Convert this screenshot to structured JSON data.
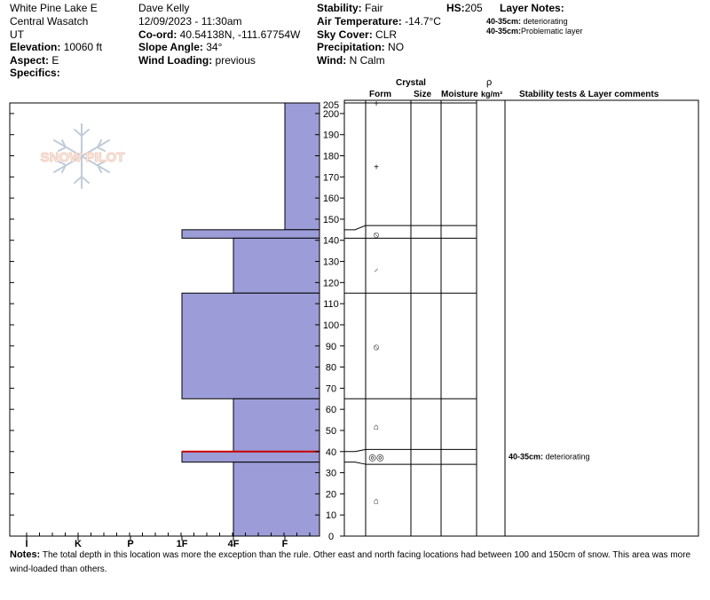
{
  "header": {
    "location": "White Pine Lake E",
    "range": "Central Wasatch",
    "state": "UT",
    "elevation_label": "Elevation:",
    "elevation_value": "10060 ft",
    "aspect_label": "Aspect:",
    "aspect_value": "E",
    "specifics_label": "Specifics:",
    "observer": "Dave Kelly",
    "datetime": "12/09/2023 - 11:30am",
    "coord_label": "Co-ord:",
    "coord_value": "40.54138N, -111.67754W",
    "slope_label": "Slope Angle:",
    "slope_value": "34°",
    "wind_loading_label": "Wind Loading:",
    "wind_loading_value": "previous",
    "stability_label": "Stability:",
    "stability_value": "Fair",
    "air_temp_label": "Air Temperature:",
    "air_temp_value": "-14.7°C",
    "sky_label": "Sky Cover:",
    "sky_value": "CLR",
    "precip_label": "Precipitation:",
    "precip_value": "NO",
    "wind_label": "Wind:",
    "wind_value": "N Calm",
    "hs_label": "HS:",
    "hs_value": "205",
    "layer_notes_label": "Layer Notes:",
    "layer_notes": [
      {
        "range": "40-35cm:",
        "text": "deteriorating"
      },
      {
        "range": "40-35cm:",
        "text": "Problematic layer"
      }
    ]
  },
  "logo_text": "SNOW PILOT",
  "columns": {
    "crystal": "Crystal",
    "form": "Form",
    "size": "Size",
    "moisture": "Moisture",
    "rho": "ρ",
    "density_unit": "kg/m³",
    "comments": "Stability tests & Layer comments"
  },
  "colors": {
    "hardness_fill": "#9c9cd8",
    "weak_layer_line": "#cc0000"
  },
  "chart_data": {
    "type": "bar",
    "title": "",
    "y_axis": {
      "min": 0,
      "max": 205,
      "ticks": [
        0,
        10,
        20,
        30,
        40,
        50,
        60,
        70,
        80,
        90,
        100,
        110,
        120,
        130,
        140,
        150,
        160,
        170,
        180,
        190,
        200,
        205
      ]
    },
    "x_axis": {
      "categories": [
        "I",
        "K",
        "P",
        "1F",
        "4F",
        "F"
      ]
    },
    "layers": [
      {
        "top": 205,
        "bottom": 145,
        "hardness": "F"
      },
      {
        "top": 145,
        "bottom": 141,
        "hardness": "1F"
      },
      {
        "top": 141,
        "bottom": 115,
        "hardness": "4F"
      },
      {
        "top": 115,
        "bottom": 65,
        "hardness": "1F"
      },
      {
        "top": 65,
        "bottom": 40,
        "hardness": "4F"
      },
      {
        "top": 40,
        "bottom": 35,
        "hardness": "1F"
      },
      {
        "top": 35,
        "bottom": 0,
        "hardness": "4F"
      }
    ],
    "weak_layer": 40,
    "grain_symbols": [
      {
        "depth": 205,
        "symbol": "+"
      },
      {
        "depth": 175,
        "symbol": "+"
      },
      {
        "depth": 143,
        "symbol": "⦸"
      },
      {
        "depth": 127,
        "symbol": "⸝"
      },
      {
        "depth": 90,
        "symbol": "⦸"
      },
      {
        "depth": 52,
        "symbol": "⌂"
      },
      {
        "depth": 37.5,
        "symbol": "◎◎"
      },
      {
        "depth": 17,
        "symbol": "⌂"
      }
    ],
    "comments": [
      {
        "depth": 37.5,
        "range": "40-35cm:",
        "text": "deteriorating"
      }
    ]
  },
  "notes": {
    "label": "Notes:",
    "text": "The total depth in this location was more the exception than the rule.  Other east and north facing locations had between 100 and 150cm of snow.  This area was more wind-loaded than others."
  }
}
